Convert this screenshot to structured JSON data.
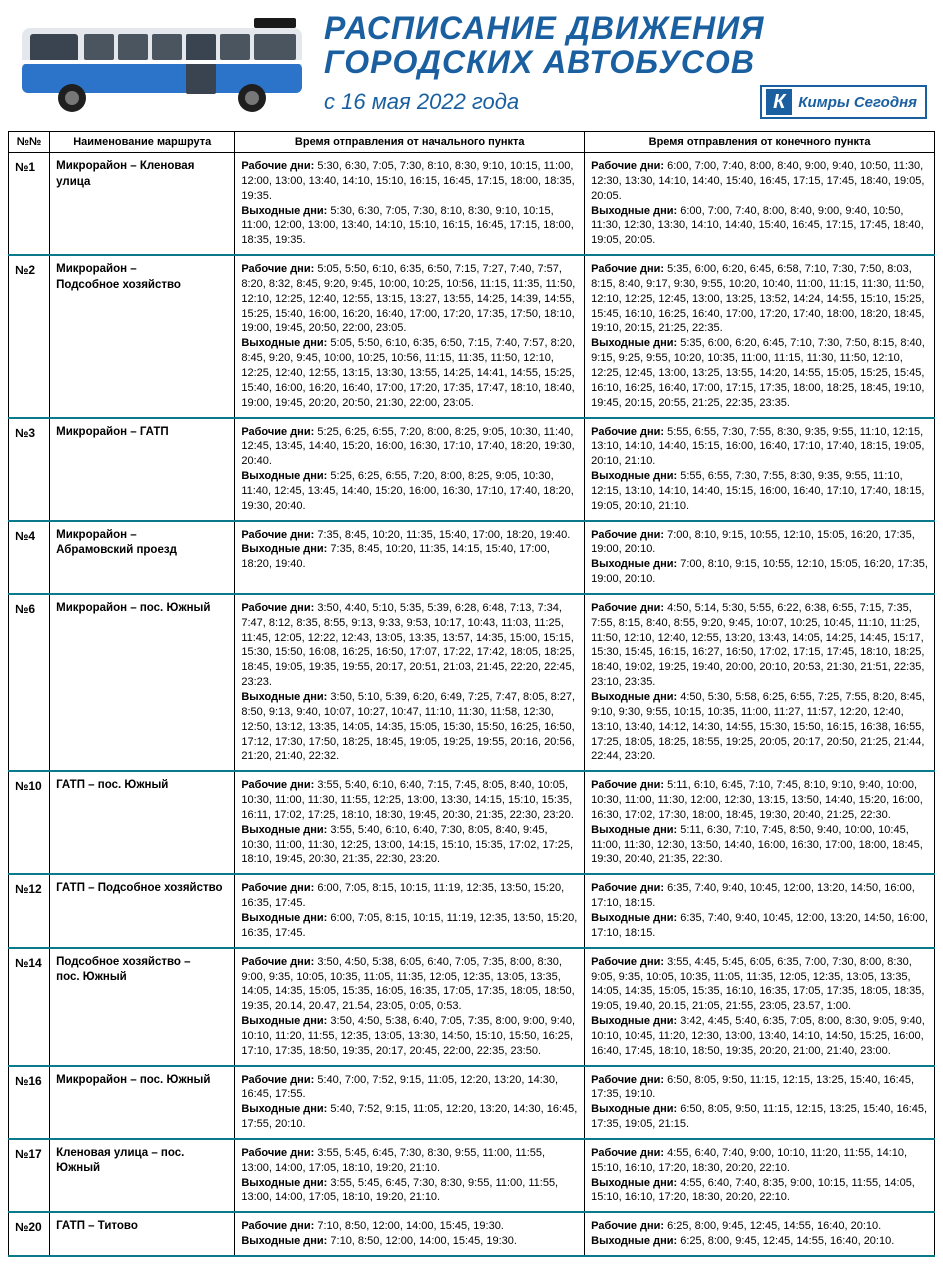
{
  "colors": {
    "title": "#1a5fa0",
    "row_divider": "#0a7a8a",
    "border": "#000000",
    "background": "#ffffff"
  },
  "header": {
    "title_line1": "РАСПИСАНИЕ ДВИЖЕНИЯ",
    "title_line2": "ГОРОДСКИХ АВТОБУСОВ",
    "subtitle": "с 16 мая 2022 года",
    "logo_text": "Кимры Сегодня",
    "logo_letter": "К"
  },
  "columns": {
    "num": "№№",
    "name": "Наименование маршрута",
    "start": "Время отправления от начального пункта",
    "end": "Время отправления от конечного пункта"
  },
  "labels": {
    "work": "Рабочие дни:",
    "weekend": "Выходные дни:"
  },
  "routes": [
    {
      "num": "№1",
      "name": "Микрорайон – Кленовая улица",
      "start_work": "5:30, 6:30, 7:05, 7:30, 8:10, 8:30, 9:10, 10:15, 11:00, 12:00, 13:00, 13:40, 14:10, 15:10, 16:15, 16:45, 17:15, 18:00, 18:35, 19:35.",
      "start_weekend": "5:30, 6:30, 7:05, 7:30, 8:10, 8:30, 9:10, 10:15, 11:00, 12:00, 13:00, 13:40, 14:10, 15:10, 16:15, 16:45, 17:15, 18:00, 18:35, 19:35.",
      "end_work": "6:00, 7:00, 7:40, 8:00, 8:40, 9:00, 9:40, 10:50, 11:30, 12:30, 13:30, 14:10, 14:40, 15:40, 16:45, 17:15, 17:45, 18:40, 19:05, 20:05.",
      "end_weekend": "6:00, 7:00, 7:40, 8:00, 8:40, 9:00, 9:40, 10:50, 11:30, 12:30, 13:30, 14:10, 14:40, 15:40, 16:45, 17:15, 17:45, 18:40, 19:05, 20:05."
    },
    {
      "num": "№2",
      "name": "Микрорайон – Подсобное хозяйство",
      "start_work": "5:05, 5:50, 6:10, 6:35, 6:50, 7:15, 7:27, 7:40, 7:57, 8:20, 8:32, 8:45, 9:20, 9:45, 10:00, 10:25, 10:56, 11:15, 11:35, 11:50, 12:10, 12:25, 12:40, 12:55, 13:15, 13:27, 13:55, 14:25, 14:39, 14:55, 15:25, 15:40, 16:00, 16:20, 16:40, 17:00, 17:20, 17:35, 17:50, 18:10, 19:00, 19:45, 20:50, 22:00, 23:05.",
      "start_weekend": "5:05, 5:50, 6:10, 6:35, 6:50, 7:15, 7:40, 7:57, 8:20, 8:45, 9:20, 9:45, 10:00, 10:25, 10:56, 11:15, 11:35, 11:50, 12:10, 12:25, 12:40, 12:55, 13:15, 13:30, 13:55, 14:25, 14:41, 14:55, 15:25, 15:40, 16:00, 16:20, 16:40, 17:00, 17:20, 17:35, 17:47, 18:10, 18:40, 19:00, 19:45, 20:20, 20:50, 21:30, 22:00, 23:05.",
      "end_work": "5:35, 6:00, 6:20, 6:45, 6:58, 7:10, 7:30, 7:50, 8:03, 8:15, 8:40, 9:17, 9:30, 9:55, 10:20, 10:40, 11:00, 11:15, 11:30, 11:50, 12:10, 12:25, 12:45, 13:00, 13:25, 13:52, 14:24, 14:55, 15:10, 15:25, 15:45, 16:10, 16:25, 16:40, 17:00, 17:20, 17:40, 18:00, 18:20, 18:45, 19:10, 20:15, 21:25, 22:35.",
      "end_weekend": "5:35, 6:00, 6:20, 6:45, 7:10, 7:30, 7:50, 8:15, 8:40, 9:15, 9:25, 9:55, 10:20, 10:35, 11:00, 11:15, 11:30, 11:50, 12:10, 12:25, 12:45, 13:00, 13:25, 13:55, 14:20, 14:55, 15:05, 15:25, 15:45, 16:10, 16:25, 16:40, 17:00, 17:15, 17:35, 18:00, 18:25, 18:45, 19:10, 19:45, 20:15, 20:55, 21:25, 22:35, 23:35."
    },
    {
      "num": "№3",
      "name": "Микрорайон – ГАТП",
      "start_work": "5:25, 6:25, 6:55, 7:20, 8:00, 8:25, 9:05, 10:30, 11:40, 12:45, 13:45, 14:40, 15:20, 16:00, 16:30, 17:10, 17:40, 18:20, 19:30, 20:40.",
      "start_weekend": "5:25, 6:25, 6:55, 7:20, 8:00, 8:25, 9:05, 10:30, 11:40, 12:45, 13:45, 14:40, 15:20, 16:00, 16:30, 17:10, 17:40, 18:20, 19:30, 20:40.",
      "end_work": "5:55, 6:55, 7:30, 7:55, 8:30, 9:35, 9:55, 11:10, 12:15, 13:10, 14:10, 14:40, 15:15, 16:00, 16:40, 17:10, 17:40, 18:15, 19:05, 20:10, 21:10.",
      "end_weekend": "5:55, 6:55, 7:30, 7:55, 8:30, 9:35, 9:55, 11:10, 12:15, 13:10, 14:10, 14:40, 15:15, 16:00, 16:40, 17:10, 17:40, 18:15, 19:05, 20:10, 21:10."
    },
    {
      "num": "№4",
      "name": "Микрорайон – Абрамовский проезд",
      "start_work": "7:35, 8:45, 10:20, 11:35, 15:40, 17:00, 18:20, 19:40.",
      "start_weekend": "7:35, 8:45, 10:20, 11:35, 14:15, 15:40, 17:00, 18:20, 19:40.",
      "end_work": "7:00, 8:10, 9:15, 10:55, 12:10, 15:05, 16:20, 17:35, 19:00, 20:10.",
      "end_weekend": "7:00, 8:10, 9:15, 10:55, 12:10, 15:05, 16:20, 17:35, 19:00, 20:10."
    },
    {
      "num": "№6",
      "name": "Микрорайон – пос. Южный",
      "start_work": "3:50, 4:40, 5:10, 5:35, 5:39, 6:28, 6:48, 7:13, 7:34, 7:47, 8:12, 8:35, 8:55, 9:13, 9:33, 9:53, 10:17, 10:43, 11:03, 11:25, 11:45, 12:05, 12:22, 12:43, 13:05, 13:35, 13:57, 14:35, 15:00, 15:15, 15:30, 15:50, 16:08, 16:25, 16:50, 17:07, 17:22, 17:42, 18:05, 18:25, 18:45, 19:05, 19:35, 19:55, 20:17, 20:51, 21:03, 21:45, 22:20, 22:45, 23:23.",
      "start_weekend": "3:50, 5:10, 5:39, 6:20, 6:49, 7:25, 7:47, 8:05, 8:27, 8:50, 9:13, 9:40, 10:07, 10:27, 10:47, 11:10, 11:30, 11:58, 12:30, 12:50, 13:12, 13:35, 14:05, 14:35, 15:05, 15:30, 15:50, 16:25, 16:50, 17:12, 17:30, 17:50, 18:25, 18:45, 19:05, 19:25, 19:55, 20:16, 20:56, 21:20, 21:40, 22:32.",
      "end_work": "4:50, 5:14, 5:30, 5:55, 6:22, 6:38, 6:55, 7:15, 7:35, 7:55, 8:15, 8:40, 8:55, 9:20, 9:45, 10:07, 10:25, 10:45, 11:10, 11:25, 11:50, 12:10, 12:40, 12:55, 13:20, 13:43, 14:05, 14:25, 14:45, 15:17, 15:30, 15:45, 16:15, 16:27, 16:50, 17:02, 17:15, 17:45, 18:10, 18:25, 18:40, 19:02, 19:25, 19:40, 20:00, 20:10, 20:53, 21:30, 21:51, 22:35, 23:10, 23:35.",
      "end_weekend": "4:50, 5:30, 5:58, 6:25, 6:55, 7:25, 7:55, 8:20, 8:45, 9:10, 9:30, 9:55, 10:15, 10:35, 11:00, 11:27, 11:57, 12:20, 12:40, 13:10, 13:40, 14:12, 14:30, 14:55, 15:30, 15:50, 16:15, 16:38, 16:55, 17:25, 18:05, 18:25, 18:55, 19:25, 20:05, 20:17, 20:50, 21:25, 21:44, 22:44, 23:20."
    },
    {
      "num": "№10",
      "name": "ГАТП – пос. Южный",
      "start_work": "3:55, 5:40, 6:10, 6:40, 7:15, 7:45, 8:05, 8:40, 10:05, 10:30, 11:00, 11:30, 11:55, 12:25, 13:00, 13:30, 14:15, 15:10, 15:35, 16:11, 17:02, 17:25, 18:10, 18:30, 19:45, 20:30, 21:35, 22:30, 23:20.",
      "start_weekend": "3:55, 5:40, 6:10, 6:40, 7:30, 8:05, 8:40, 9:45, 10:30, 11:00, 11:30, 12:25, 13:00, 14:15, 15:10, 15:35, 17:02, 17:25, 18:10, 19:45, 20:30, 21:35, 22:30, 23:20.",
      "end_work": "5:11, 6:10, 6:45, 7:10, 7:45, 8:10, 9:10, 9:40, 10:00, 10:30, 11:00, 11:30, 12:00, 12:30, 13:15, 13:50, 14:40, 15:20, 16:00, 16:30, 17:02, 17:30, 18:00, 18:45, 19:30, 20:40, 21:25, 22:30.",
      "end_weekend": "5:11, 6:30, 7:10, 7:45, 8:50, 9:40, 10:00, 10:45, 11:00, 11:30, 12:30, 13:50, 14:40, 16:00, 16:30, 17:00, 18:00, 18:45, 19:30, 20:40, 21:35, 22:30."
    },
    {
      "num": "№12",
      "name": "ГАТП – Подсобное хозяйство",
      "start_work": "6:00, 7:05, 8:15, 10:15, 11:19, 12:35, 13:50, 15:20, 16:35, 17:45.",
      "start_weekend": "6:00, 7:05, 8:15, 10:15, 11:19, 12:35, 13:50, 15:20, 16:35, 17:45.",
      "end_work": "6:35, 7:40, 9:40, 10:45, 12:00, 13:20, 14:50, 16:00, 17:10, 18:15.",
      "end_weekend": "6:35, 7:40, 9:40, 10:45, 12:00, 13:20, 14:50, 16:00, 17:10, 18:15."
    },
    {
      "num": "№14",
      "name": "Подсобное хозяйство – пос. Южный",
      "start_work": "3:50, 4:50, 5:38, 6:05, 6:40, 7:05, 7:35, 8:00, 8:30, 9:00, 9:35, 10:05, 10:35, 11:05, 11:35, 12:05, 12:35, 13:05, 13:35, 14:05, 14:35, 15:05, 15:35, 16:05, 16:35, 17:05, 17:35, 18:05, 18:50, 19:35, 20.14, 20.47, 21.54, 23:05, 0:05, 0:53.",
      "start_weekend": "3:50, 4:50, 5:38, 6:40, 7:05, 7:35, 8:00, 9:00, 9:40, 10:10, 11:20, 11:55, 12:35, 13:05, 13:30, 14:50, 15:10, 15:50, 16:25, 17:10, 17:35, 18:50, 19:35, 20:17, 20:45, 22:00, 22:35, 23:50.",
      "end_work": "3:55, 4:45, 5:45, 6:05, 6:35, 7:00, 7:30, 8:00, 8:30, 9:05, 9:35, 10:05, 10:35, 11:05, 11:35, 12:05, 12:35, 13:05, 13:35, 14:05, 14:35, 15:05, 15:35, 16:10, 16:35, 17:05, 17:35, 18:05, 18:35, 19:05, 19.40, 20.15, 21:05, 21:55, 23:05, 23.57, 1:00.",
      "end_weekend": "3:42, 4:45, 5:40, 6:35, 7:05, 8:00, 8:30, 9:05, 9:40, 10:10, 10:45, 11:20, 12:30, 13:00, 13:40, 14:10, 14:50, 15:25, 16:00, 16:40, 17:45, 18:10, 18:50, 19:35, 20:20, 21:00, 21:40, 23:00."
    },
    {
      "num": "№16",
      "name": "Микрорайон – пос. Южный",
      "start_work": "5:40, 7:00, 7:52, 9:15, 11:05, 12:20, 13:20, 14:30, 16:45, 17:55.",
      "start_weekend": "5:40, 7:52, 9:15, 11:05, 12:20, 13:20, 14:30, 16:45, 17:55, 20:10.",
      "end_work": "6:50, 8:05, 9:50, 11:15, 12:15, 13:25, 15:40, 16:45, 17:35, 19:10.",
      "end_weekend": "6:50, 8:05, 9:50, 11:15, 12:15, 13:25, 15:40, 16:45, 17:35, 19:05, 21:15."
    },
    {
      "num": "№17",
      "name": "Кленовая улица – пос. Южный",
      "start_work": "3:55, 5:45, 6:45, 7:30, 8:30, 9:55, 11:00, 11:55, 13:00, 14:00, 17:05, 18:10, 19:20, 21:10.",
      "start_weekend": "3:55, 5:45, 6:45, 7:30, 8:30, 9:55, 11:00, 11:55, 13:00, 14:00, 17:05, 18:10, 19:20, 21:10.",
      "end_work": "4:55, 6:40, 7:40, 9:00, 10:10, 11:20, 11:55, 14:10, 15:10, 16:10, 17:20, 18:30, 20:20, 22:10.",
      "end_weekend": "4:55, 6:40, 7:40, 8:35, 9:00, 10:15, 11:55, 14:05, 15:10, 16:10, 17:20, 18:30, 20:20, 22:10."
    },
    {
      "num": "№20",
      "name": "ГАТП – Титово",
      "start_work": "7:10, 8:50, 12:00, 14:00, 15:45, 19:30.",
      "start_weekend": "7:10, 8:50, 12:00, 14:00, 15:45, 19:30.",
      "end_work": "6:25, 8:00, 9:45, 12:45, 14:55, 16:40, 20:10.",
      "end_weekend": "6:25, 8:00, 9:45, 12:45, 14:55, 16:40, 20:10."
    }
  ]
}
